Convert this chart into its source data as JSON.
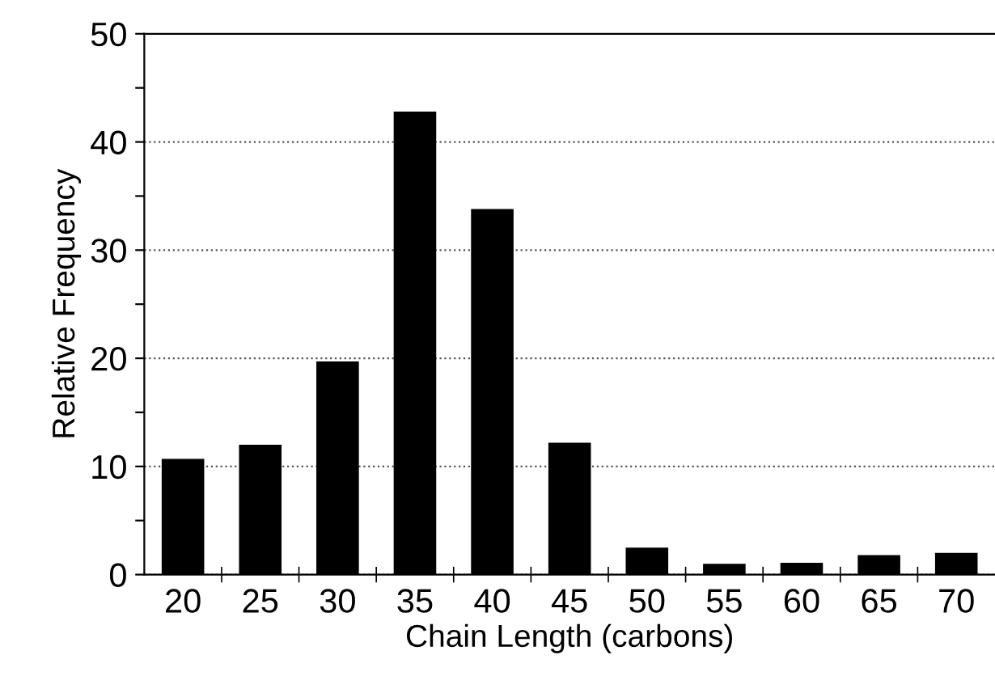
{
  "chart_data": {
    "type": "bar",
    "xlabel": "Chain Length (carbons)",
    "ylabel": "Relative Frequency",
    "categories": [
      "20",
      "25",
      "30",
      "35",
      "40",
      "45",
      "50",
      "55",
      "60",
      "65",
      "70"
    ],
    "values": [
      10.7,
      12.0,
      19.7,
      42.8,
      33.8,
      12.2,
      2.5,
      1.0,
      1.1,
      1.8,
      2.0
    ],
    "color": "#000000",
    "ylim": [
      0,
      50
    ],
    "yticks": [
      0,
      {
        "value": 5,
        "label": null
      },
      10,
      {
        "value": 15,
        "label": null
      },
      20,
      {
        "value": 25,
        "label": null
      },
      30,
      {
        "value": 35,
        "label": null
      },
      40,
      {
        "value": 45,
        "label": null
      },
      50
    ],
    "grid": "y",
    "legend": false
  }
}
